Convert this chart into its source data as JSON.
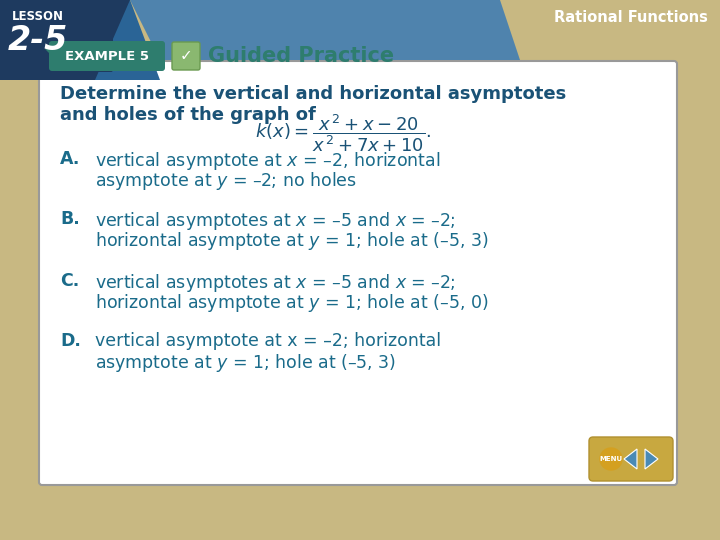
{
  "bg_color": "#c8b882",
  "slide_bg": "#ffffff",
  "title_color": "#1a5276",
  "label_color": "#1a6b8a",
  "lesson_bg1": "#1a3a5c",
  "lesson_bg2": "#2a6496",
  "top_right_text": "Rational Functions",
  "example_bg": "#2e7d6e",
  "guided_color": "#2e7d6e",
  "title_line1": "Determine the vertical and horizontal asymptotes",
  "title_line2": "and holes of the graph of",
  "labels": [
    "A.",
    "B.",
    "C.",
    "D."
  ],
  "choice_line1": [
    "vertical asymptote at $\\mathit{x}$ = –2, horizontal",
    "vertical asymptotes at $\\mathit{x}$ = –5 and $\\mathit{x}$ = –2;",
    "vertical asymptotes at $\\mathit{x}$ = –5 and $\\mathit{x}$ = –2;",
    "vertical asymptote at x = –2; horizontal"
  ],
  "choice_line2": [
    "asymptote at $\\mathit{y}$ = –2; no holes",
    "horizontal asymptote at $\\mathit{y}$ = 1; hole at (–5, 3)",
    "horizontal asymptote at $\\mathit{y}$ = 1; hole at (–5, 0)",
    "asymptote at $\\mathit{y}$ = 1; hole at (–5, 3)"
  ]
}
